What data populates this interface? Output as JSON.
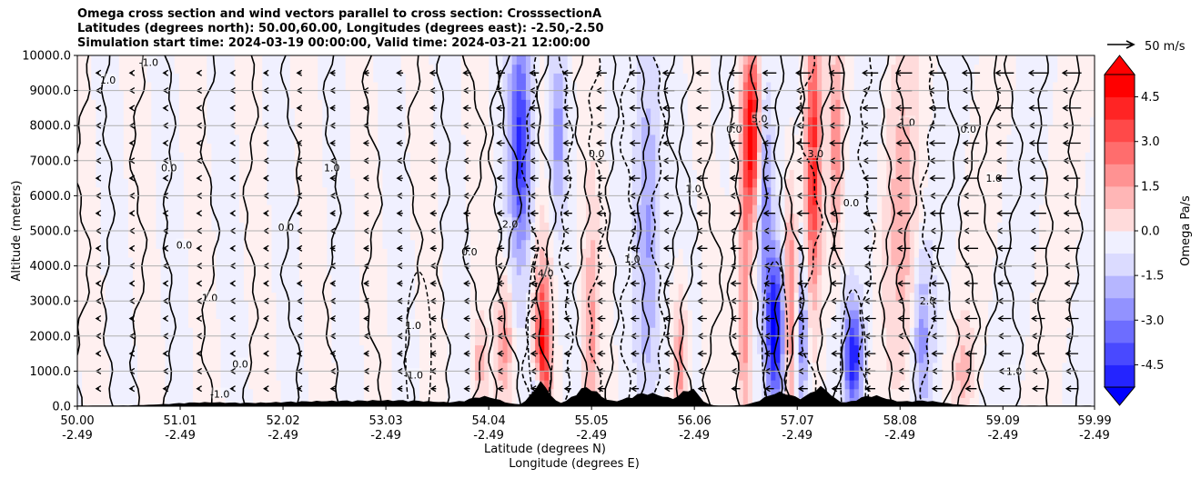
{
  "chart_data": {
    "type": "contourf",
    "title_lines": [
      "Omega cross section and wind vectors parallel to cross section: CrosssectionA",
      "Latitudes (degrees north): 50.00,60.00, Longitudes (degrees east): -2.50,-2.50",
      "Simulation start time: 2024-03-19 00:00:00, Valid time: 2024-03-21 12:00:00"
    ],
    "xlabel_line1": "Latitude (degrees N)",
    "xlabel_line2": "Longitude (degrees E)",
    "ylabel": "Altitude (meters)",
    "xlim": [
      50.0,
      59.99
    ],
    "ylim": [
      0,
      10000
    ],
    "x_ticks": [
      {
        "lat": "50.00",
        "lon": "-2.49"
      },
      {
        "lat": "51.01",
        "lon": "-2.49"
      },
      {
        "lat": "52.02",
        "lon": "-2.49"
      },
      {
        "lat": "53.03",
        "lon": "-2.49"
      },
      {
        "lat": "54.04",
        "lon": "-2.49"
      },
      {
        "lat": "55.05",
        "lon": "-2.49"
      },
      {
        "lat": "56.06",
        "lon": "-2.49"
      },
      {
        "lat": "57.07",
        "lon": "-2.49"
      },
      {
        "lat": "58.08",
        "lon": "-2.49"
      },
      {
        "lat": "59.09",
        "lon": "-2.49"
      },
      {
        "lat": "59.99",
        "lon": "-2.49"
      }
    ],
    "y_ticks": [
      "0.0",
      "1000.0",
      "2000.0",
      "3000.0",
      "4000.0",
      "5000.0",
      "6000.0",
      "7000.0",
      "8000.0",
      "9000.0",
      "10000.0"
    ],
    "grid": "horizontal",
    "colorbar": {
      "label": "Omega Pa/s",
      "range": [
        -5.25,
        5.25
      ],
      "ticks": [
        "-4.5",
        "-3.0",
        "-1.5",
        "0.0",
        "1.5",
        "3.0",
        "4.5"
      ],
      "extend": "both"
    },
    "quiver_key": {
      "label": "50 m/s",
      "speed": 50
    },
    "contour_label_values": [
      "-1.0",
      "0.0",
      "1.0",
      "2.0",
      "3.0",
      "4.0",
      "5.0"
    ],
    "features": [
      {
        "name": "positive omega band",
        "lat": 54.55,
        "alt_range": [
          0,
          4200
        ],
        "max_omega": 5.0
      },
      {
        "name": "negative omega band",
        "lat": 54.35,
        "alt_range": [
          0,
          10000
        ],
        "min_omega": -4.5
      },
      {
        "name": "positive omega band",
        "lat": 56.62,
        "alt_range": [
          500,
          10000
        ],
        "max_omega": 5.0
      },
      {
        "name": "negative omega band",
        "lat": 56.85,
        "alt_range": [
          0,
          4000
        ],
        "min_omega": -5.0
      },
      {
        "name": "negative omega band",
        "lat": 57.6,
        "alt_range": [
          0,
          2500
        ],
        "min_omega": -4.5
      }
    ],
    "terrain": "black filled orography near surface, peaks up to ~700 m"
  }
}
